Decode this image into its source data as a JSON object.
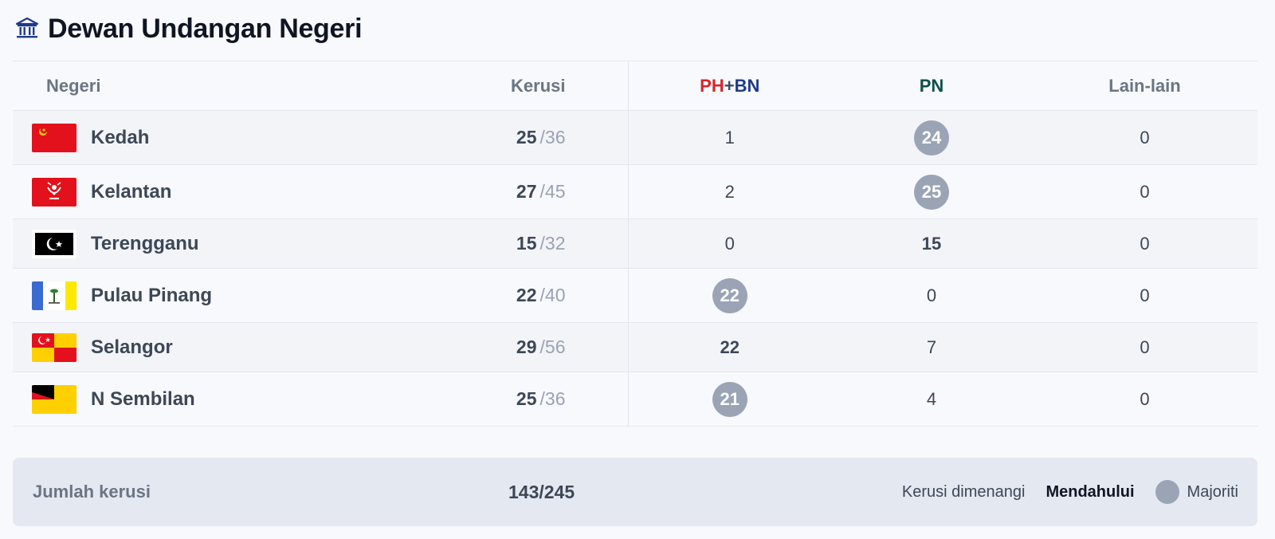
{
  "title": "Dewan Undangan Negeri",
  "title_icon": "government-building-icon",
  "columns": {
    "negeri": "Negeri",
    "kerusi": "Kerusi",
    "ph": "PH",
    "plus": "+",
    "bn": "BN",
    "pn": "PN",
    "lain": "Lain-lain"
  },
  "colors": {
    "ph": "#d8232a",
    "bn": "#1e3a8a",
    "pn": "#0d4f4a",
    "majority_badge": "#9aa4b5"
  },
  "rows": [
    {
      "state": "Kedah",
      "flag": "kedah-flag-icon",
      "won": "25",
      "total": "/36",
      "phbn": "1",
      "pn": "24",
      "lain": "0",
      "majority": "pn",
      "leading": ""
    },
    {
      "state": "Kelantan",
      "flag": "kelantan-flag-icon",
      "won": "27",
      "total": "/45",
      "phbn": "2",
      "pn": "25",
      "lain": "0",
      "majority": "pn",
      "leading": ""
    },
    {
      "state": "Terengganu",
      "flag": "terengganu-flag-icon",
      "won": "15",
      "total": "/32",
      "phbn": "0",
      "pn": "15",
      "lain": "0",
      "majority": "",
      "leading": "pn"
    },
    {
      "state": "Pulau Pinang",
      "flag": "pulau-pinang-flag-icon",
      "won": "22",
      "total": "/40",
      "phbn": "22",
      "pn": "0",
      "lain": "0",
      "majority": "phbn",
      "leading": ""
    },
    {
      "state": "Selangor",
      "flag": "selangor-flag-icon",
      "won": "29",
      "total": "/56",
      "phbn": "22",
      "pn": "7",
      "lain": "0",
      "majority": "",
      "leading": "phbn"
    },
    {
      "state": "N Sembilan",
      "flag": "negeri-sembilan-flag-icon",
      "won": "25",
      "total": "/36",
      "phbn": "21",
      "pn": "4",
      "lain": "0",
      "majority": "phbn",
      "leading": ""
    }
  ],
  "footer": {
    "label": "Jumlah kerusi",
    "total": "143/245",
    "legend_won": "Kerusi dimenangi",
    "legend_leading": "Mendahului",
    "legend_majority": "Majoriti"
  }
}
